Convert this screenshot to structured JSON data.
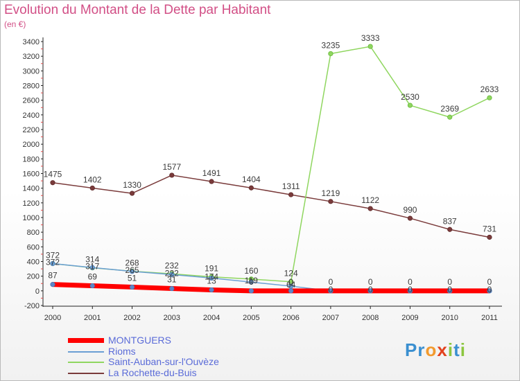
{
  "title": "Evolution du Montant de la Dette par Habitant",
  "subtitle": "(en €)",
  "logo": {
    "text": "Proxiti",
    "letters": [
      {
        "ch": "P",
        "color": "#3a8fd0"
      },
      {
        "ch": "r",
        "color": "#3a8fd0"
      },
      {
        "ch": "o",
        "color": "#f29a2e"
      },
      {
        "ch": "x",
        "color": "#e2421e"
      },
      {
        "ch": "i",
        "color": "#8cc63f"
      },
      {
        "ch": "t",
        "color": "#3a8fd0"
      },
      {
        "ch": "i",
        "color": "#8cc63f"
      }
    ]
  },
  "chart_data": {
    "type": "line",
    "title": "Evolution du Montant de la Dette par Habitant",
    "ylabel": "(en €)",
    "x": [
      2000,
      2001,
      2002,
      2003,
      2004,
      2005,
      2006,
      2007,
      2008,
      2009,
      2010,
      2011
    ],
    "ylim": [
      -200,
      3400
    ],
    "yticks": [
      -200,
      0,
      200,
      400,
      600,
      800,
      1000,
      1200,
      1400,
      1600,
      1800,
      2000,
      2200,
      2400,
      2600,
      2800,
      3000,
      3200,
      3400
    ],
    "grid": false,
    "legend_position": "bottom-left",
    "series": [
      {
        "name": "MONTGUERS",
        "color": "#ff0000",
        "values": [
          87,
          69,
          51,
          31,
          13,
          0,
          0,
          0,
          0,
          0,
          0,
          0
        ],
        "labels": [
          "87",
          "69",
          "51",
          "31",
          "13",
          "0",
          "0",
          "0",
          "0",
          "0",
          "0",
          "0"
        ]
      },
      {
        "name": "Rioms",
        "color": "#6a9ed4",
        "values": [
          372,
          317,
          265,
          222,
          174,
          119,
          64,
          0,
          0,
          0,
          0,
          0
        ],
        "labels": [
          "372",
          "317",
          "265",
          "222",
          "174",
          "119",
          "64",
          "0",
          "0",
          "0",
          "0",
          "0"
        ]
      },
      {
        "name": "Saint-Auban-sur-l'Ouvèze",
        "color": "#8fd65f",
        "values": [
          372,
          314,
          268,
          232,
          191,
          160,
          124,
          3235,
          3333,
          2530,
          2369,
          2633
        ],
        "labels": [
          "372",
          "314",
          "268",
          "232",
          "191",
          "160",
          "124",
          "3235",
          "3333",
          "2530",
          "2369",
          "2633"
        ]
      },
      {
        "name": "La Rochette-du-Buis",
        "color": "#7a3b3b",
        "values": [
          1475,
          1402,
          1330,
          1577,
          1491,
          1404,
          1311,
          1219,
          1122,
          990,
          837,
          731
        ],
        "labels": [
          "1475",
          "1402",
          "1330",
          "1577",
          "1491",
          "1404",
          "1311",
          "1219",
          "1122",
          "990",
          "837",
          "731"
        ]
      }
    ]
  }
}
